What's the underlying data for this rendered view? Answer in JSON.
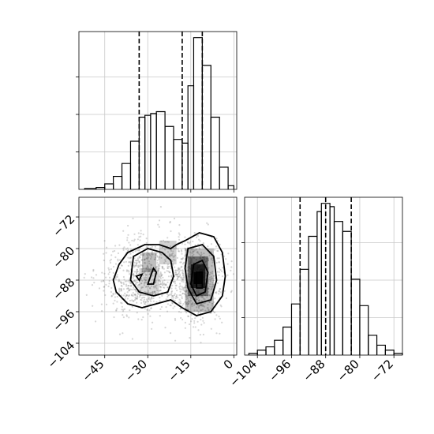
{
  "chart_data": {
    "type": "corner",
    "title": "",
    "parameters": [
      "",
      ""
    ],
    "panels": [
      {
        "id": "hist-param1",
        "type": "histogram",
        "xlim": [
          -54,
          1
        ],
        "bins": [
          [
            -52,
            -48,
            0.005
          ],
          [
            -48,
            -45,
            0.01
          ],
          [
            -45,
            -42,
            0.03
          ],
          [
            -42,
            -39,
            0.07
          ],
          [
            -39,
            -36,
            0.14
          ],
          [
            -36,
            -33,
            0.26
          ],
          [
            -33,
            -31,
            0.39
          ],
          [
            -31,
            -29,
            0.4
          ],
          [
            -29,
            -27,
            0.41
          ],
          [
            -27,
            -24,
            0.42
          ],
          [
            -24,
            -21,
            0.34
          ],
          [
            -21,
            -18,
            0.27
          ],
          [
            -18,
            -16,
            0.25
          ],
          [
            -16,
            -14,
            0.56
          ],
          [
            -14,
            -11,
            0.82
          ],
          [
            -11,
            -8,
            0.67
          ],
          [
            -8,
            -5,
            0.39
          ],
          [
            -5,
            -2,
            0.12
          ],
          [
            -2,
            0,
            0.02
          ]
        ],
        "quantiles": [
          -33,
          -18,
          -11
        ],
        "xticks": [
          -45,
          -30,
          -15,
          0
        ]
      },
      {
        "id": "joint",
        "type": "2d-density",
        "xlim": [
          -54,
          1
        ],
        "ylim": [
          -107,
          -67
        ],
        "xticks": [
          -45,
          -30,
          -15,
          0
        ],
        "yticks": [
          -72,
          -80,
          -88,
          -96,
          -104
        ],
        "xticklabels": [
          "−45",
          "−30",
          "−15",
          "0"
        ],
        "yticklabels": [
          "−72",
          "−80",
          "−88",
          "−96",
          "−104"
        ],
        "modes": [
          [
            -30,
            -87.5
          ],
          [
            -13,
            -88
          ]
        ],
        "scatter_points": 1500
      },
      {
        "id": "hist-param2",
        "type": "histogram",
        "xlim": [
          -107,
          -70
        ],
        "bins": [
          [
            -106,
            -104,
            0.01
          ],
          [
            -104,
            -102,
            0.03
          ],
          [
            -102,
            -100,
            0.05
          ],
          [
            -100,
            -98,
            0.09
          ],
          [
            -98,
            -96,
            0.17
          ],
          [
            -96,
            -94,
            0.31
          ],
          [
            -94,
            -92,
            0.52
          ],
          [
            -92,
            -90,
            0.72
          ],
          [
            -90,
            -89,
            0.87
          ],
          [
            -89,
            -87,
            0.92
          ],
          [
            -87,
            -86,
            0.9
          ],
          [
            -86,
            -84,
            0.81
          ],
          [
            -84,
            -82,
            0.75
          ],
          [
            -82,
            -80,
            0.46
          ],
          [
            -80,
            -78,
            0.3
          ],
          [
            -78,
            -76,
            0.12
          ],
          [
            -76,
            -74,
            0.06
          ],
          [
            -74,
            -72,
            0.03
          ],
          [
            -72,
            -70,
            0.01
          ]
        ],
        "quantiles": [
          -94,
          -88,
          -82
        ],
        "xticks": [
          -104,
          -96,
          -88,
          -80,
          -72
        ],
        "xticklabels": [
          "−104",
          "−96",
          "−88",
          "−80",
          "−72"
        ]
      }
    ]
  }
}
